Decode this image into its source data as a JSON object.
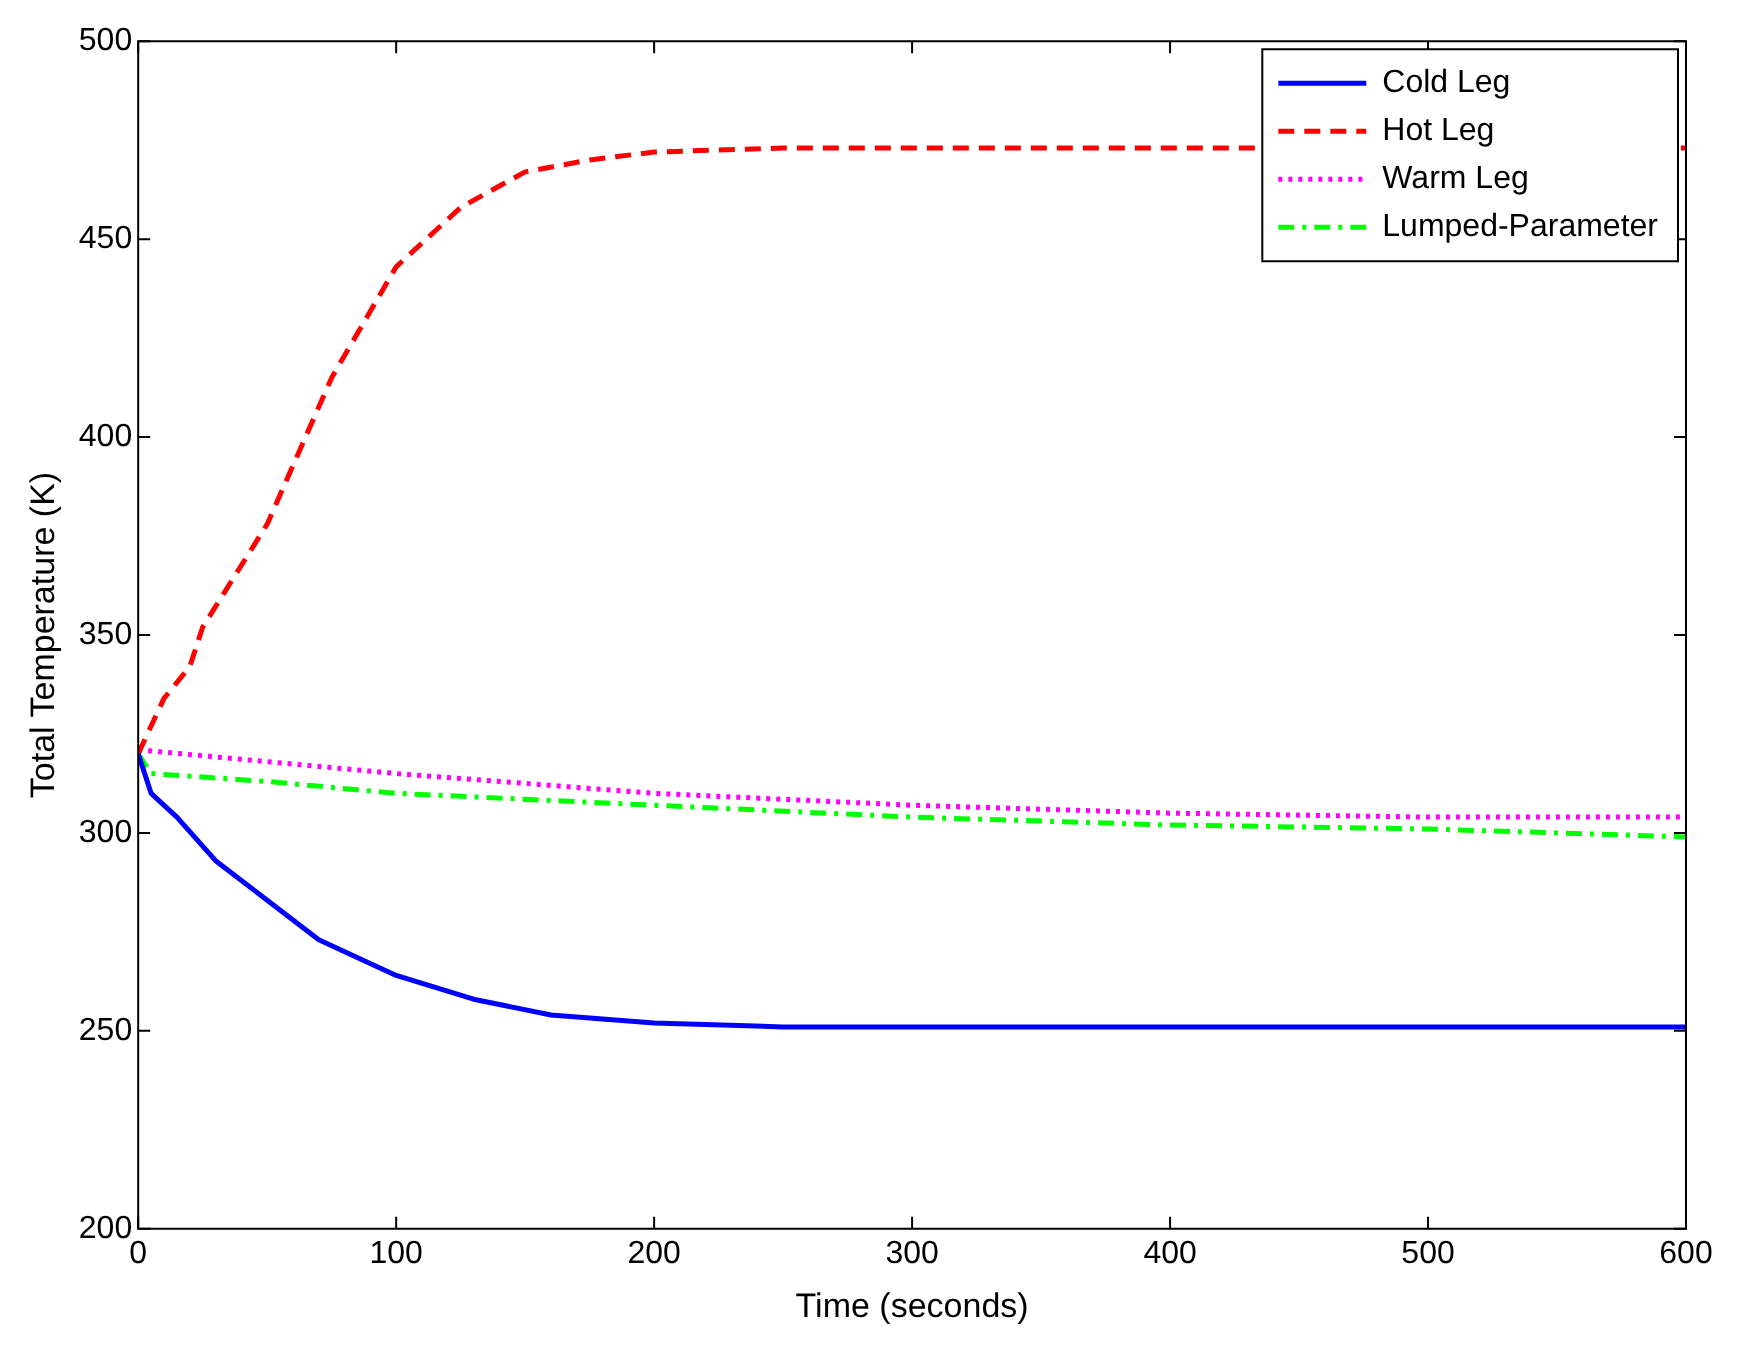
{
  "chart_data": {
    "type": "line",
    "xlabel": "Time (seconds)",
    "ylabel": "Total Temperature (K)",
    "xlim": [
      0,
      600
    ],
    "xticks": [
      0,
      100,
      200,
      300,
      400,
      500,
      600
    ],
    "ylim": [
      200,
      500
    ],
    "yticks": [
      200,
      250,
      300,
      350,
      400,
      450,
      500
    ],
    "grid": false,
    "legend": "top right",
    "marker": "none",
    "series": [
      {
        "name": "Cold Leg",
        "color": "#0000ff",
        "line_style": "solid",
        "x": [
          0,
          5,
          15,
          30,
          50,
          70,
          100,
          130,
          160,
          200,
          250,
          400,
          600
        ],
        "values": [
          320,
          310,
          304,
          293,
          283,
          273,
          264,
          258,
          254,
          252,
          251,
          251,
          251
        ]
      },
      {
        "name": "Hot Leg",
        "color": "#ff0000",
        "line_style": "dashed",
        "x": [
          0,
          10,
          20,
          25,
          50,
          75,
          100,
          125,
          150,
          175,
          200,
          250,
          400,
          600
        ],
        "values": [
          320,
          334,
          342,
          352,
          378,
          415,
          443,
          458,
          467,
          470,
          472,
          473,
          473,
          473
        ]
      },
      {
        "name": "Warm Leg",
        "color": "#ff00ff",
        "line_style": "dotted",
        "x": [
          0,
          50,
          100,
          200,
          300,
          400,
          500,
          600
        ],
        "values": [
          321,
          318,
          315,
          310,
          307,
          305,
          304,
          304
        ]
      },
      {
        "name": "Lumped-Parameter",
        "color": "#00ff00",
        "line_style": "dashdot",
        "x": [
          0,
          5,
          50,
          100,
          200,
          300,
          400,
          500,
          600
        ],
        "values": [
          320,
          315,
          313,
          310,
          307,
          304,
          302,
          301,
          299
        ]
      }
    ]
  }
}
